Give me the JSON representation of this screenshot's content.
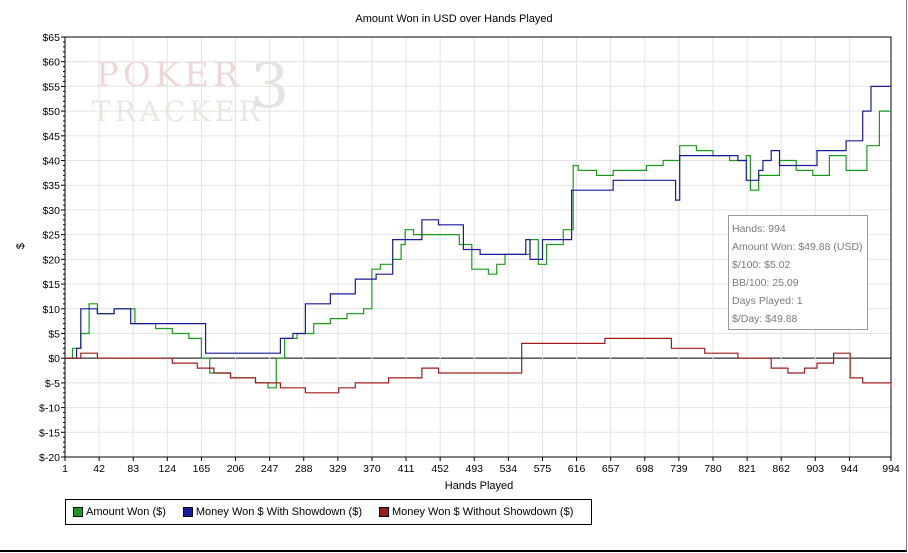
{
  "chart_data": {
    "type": "line",
    "title": "Amount Won in USD over Hands Played",
    "xlabel": "Hands Played",
    "ylabel": "$",
    "x_ticks": [
      "1",
      "42",
      "83",
      "124",
      "165",
      "206",
      "247",
      "288",
      "329",
      "370",
      "411",
      "452",
      "493",
      "534",
      "575",
      "616",
      "657",
      "698",
      "739",
      "780",
      "821",
      "862",
      "903",
      "944",
      "994"
    ],
    "y_ticks": [
      "$65",
      "$60",
      "$55",
      "$50",
      "$45",
      "$40",
      "$35",
      "$30",
      "$25",
      "$20",
      "$15",
      "$10",
      "$5",
      "$0",
      "$-5",
      "$-10",
      "$-15",
      "$-20"
    ],
    "xlim": [
      1,
      994
    ],
    "ylim": [
      -20,
      65
    ],
    "grid": true,
    "legend_position": "bottom-left",
    "series": [
      {
        "name": "Amount Won ($)",
        "color": "#1a9a1a",
        "x": [
          1,
          10,
          20,
          30,
          40,
          60,
          75,
          85,
          100,
          110,
          130,
          150,
          165,
          175,
          200,
          230,
          245,
          255,
          265,
          280,
          300,
          320,
          340,
          360,
          370,
          380,
          395,
          405,
          410,
          420,
          440,
          460,
          475,
          490,
          510,
          520,
          530,
          540,
          560,
          570,
          580,
          600,
          612,
          618,
          640,
          660,
          680,
          700,
          720,
          740,
          760,
          780,
          800,
          820,
          825,
          835,
          850,
          860,
          880,
          900,
          920,
          940,
          955,
          965,
          980,
          994
        ],
        "y": [
          0,
          2,
          5,
          11,
          9,
          10,
          10,
          7,
          7,
          6,
          5,
          4,
          0,
          -3,
          -4,
          -5,
          -6,
          0,
          4,
          5,
          7,
          8,
          9,
          10,
          18,
          19,
          20,
          23,
          26,
          25,
          25,
          25,
          23,
          18,
          17,
          19,
          21,
          21,
          24,
          19,
          23,
          26,
          39,
          38,
          37,
          38,
          38,
          39,
          40,
          43,
          42,
          41,
          40,
          41,
          34,
          37,
          37,
          40,
          38,
          37,
          41,
          38,
          38,
          43,
          50,
          49.88
        ]
      },
      {
        "name": "Money Won $ With Showdown ($)",
        "color": "#1a1a9a",
        "x": [
          1,
          15,
          20,
          40,
          60,
          75,
          80,
          100,
          130,
          160,
          170,
          190,
          220,
          250,
          260,
          275,
          290,
          320,
          350,
          365,
          375,
          395,
          410,
          430,
          450,
          470,
          480,
          500,
          520,
          530,
          545,
          555,
          560,
          575,
          610,
          615,
          630,
          650,
          660,
          690,
          700,
          735,
          740,
          745,
          780,
          810,
          820,
          835,
          840,
          850,
          860,
          880,
          905,
          920,
          940,
          955,
          960,
          970,
          980,
          994
        ],
        "y": [
          0,
          2,
          10,
          9,
          10,
          10,
          7,
          7,
          7,
          7,
          1,
          1,
          1,
          1,
          4,
          5,
          11,
          13,
          16,
          16,
          17,
          24,
          24,
          28,
          27,
          27,
          22,
          21,
          21,
          21,
          21,
          24,
          20,
          24,
          34,
          34,
          34,
          34,
          36,
          36,
          36,
          32,
          41,
          41,
          41,
          40,
          36,
          38,
          40,
          42,
          39,
          39,
          42,
          42,
          44,
          44,
          50,
          55,
          55,
          55.5
        ]
      },
      {
        "name": "Money Won $ Without Showdown ($)",
        "color": "#a01c1c",
        "x": [
          1,
          20,
          40,
          60,
          80,
          100,
          130,
          160,
          180,
          200,
          230,
          260,
          290,
          310,
          330,
          350,
          370,
          390,
          410,
          430,
          450,
          470,
          490,
          510,
          530,
          550,
          570,
          590,
          610,
          630,
          650,
          670,
          690,
          710,
          730,
          750,
          770,
          790,
          810,
          830,
          850,
          870,
          890,
          905,
          915,
          925,
          935,
          945,
          960,
          980,
          994
        ],
        "y": [
          0,
          1,
          0,
          0,
          0,
          0,
          -1,
          -2,
          -3,
          -4,
          -5,
          -6,
          -7,
          -7,
          -6,
          -5,
          -5,
          -4,
          -4,
          -2,
          -3,
          -3,
          -3,
          -3,
          -3,
          3,
          3,
          3,
          3,
          3,
          4,
          4,
          4,
          4,
          2,
          2,
          1,
          1,
          0,
          0,
          -2,
          -3,
          -2,
          -1,
          -1,
          1,
          1,
          -4,
          -5,
          -5,
          -6
        ]
      }
    ],
    "stats_box": [
      "Hands: 994",
      "Amount Won: $49.88 (USD)",
      "$/100: $5.02",
      "BB/100: 25.09",
      "Days Played: 1",
      "$/Day: $49.88"
    ]
  }
}
